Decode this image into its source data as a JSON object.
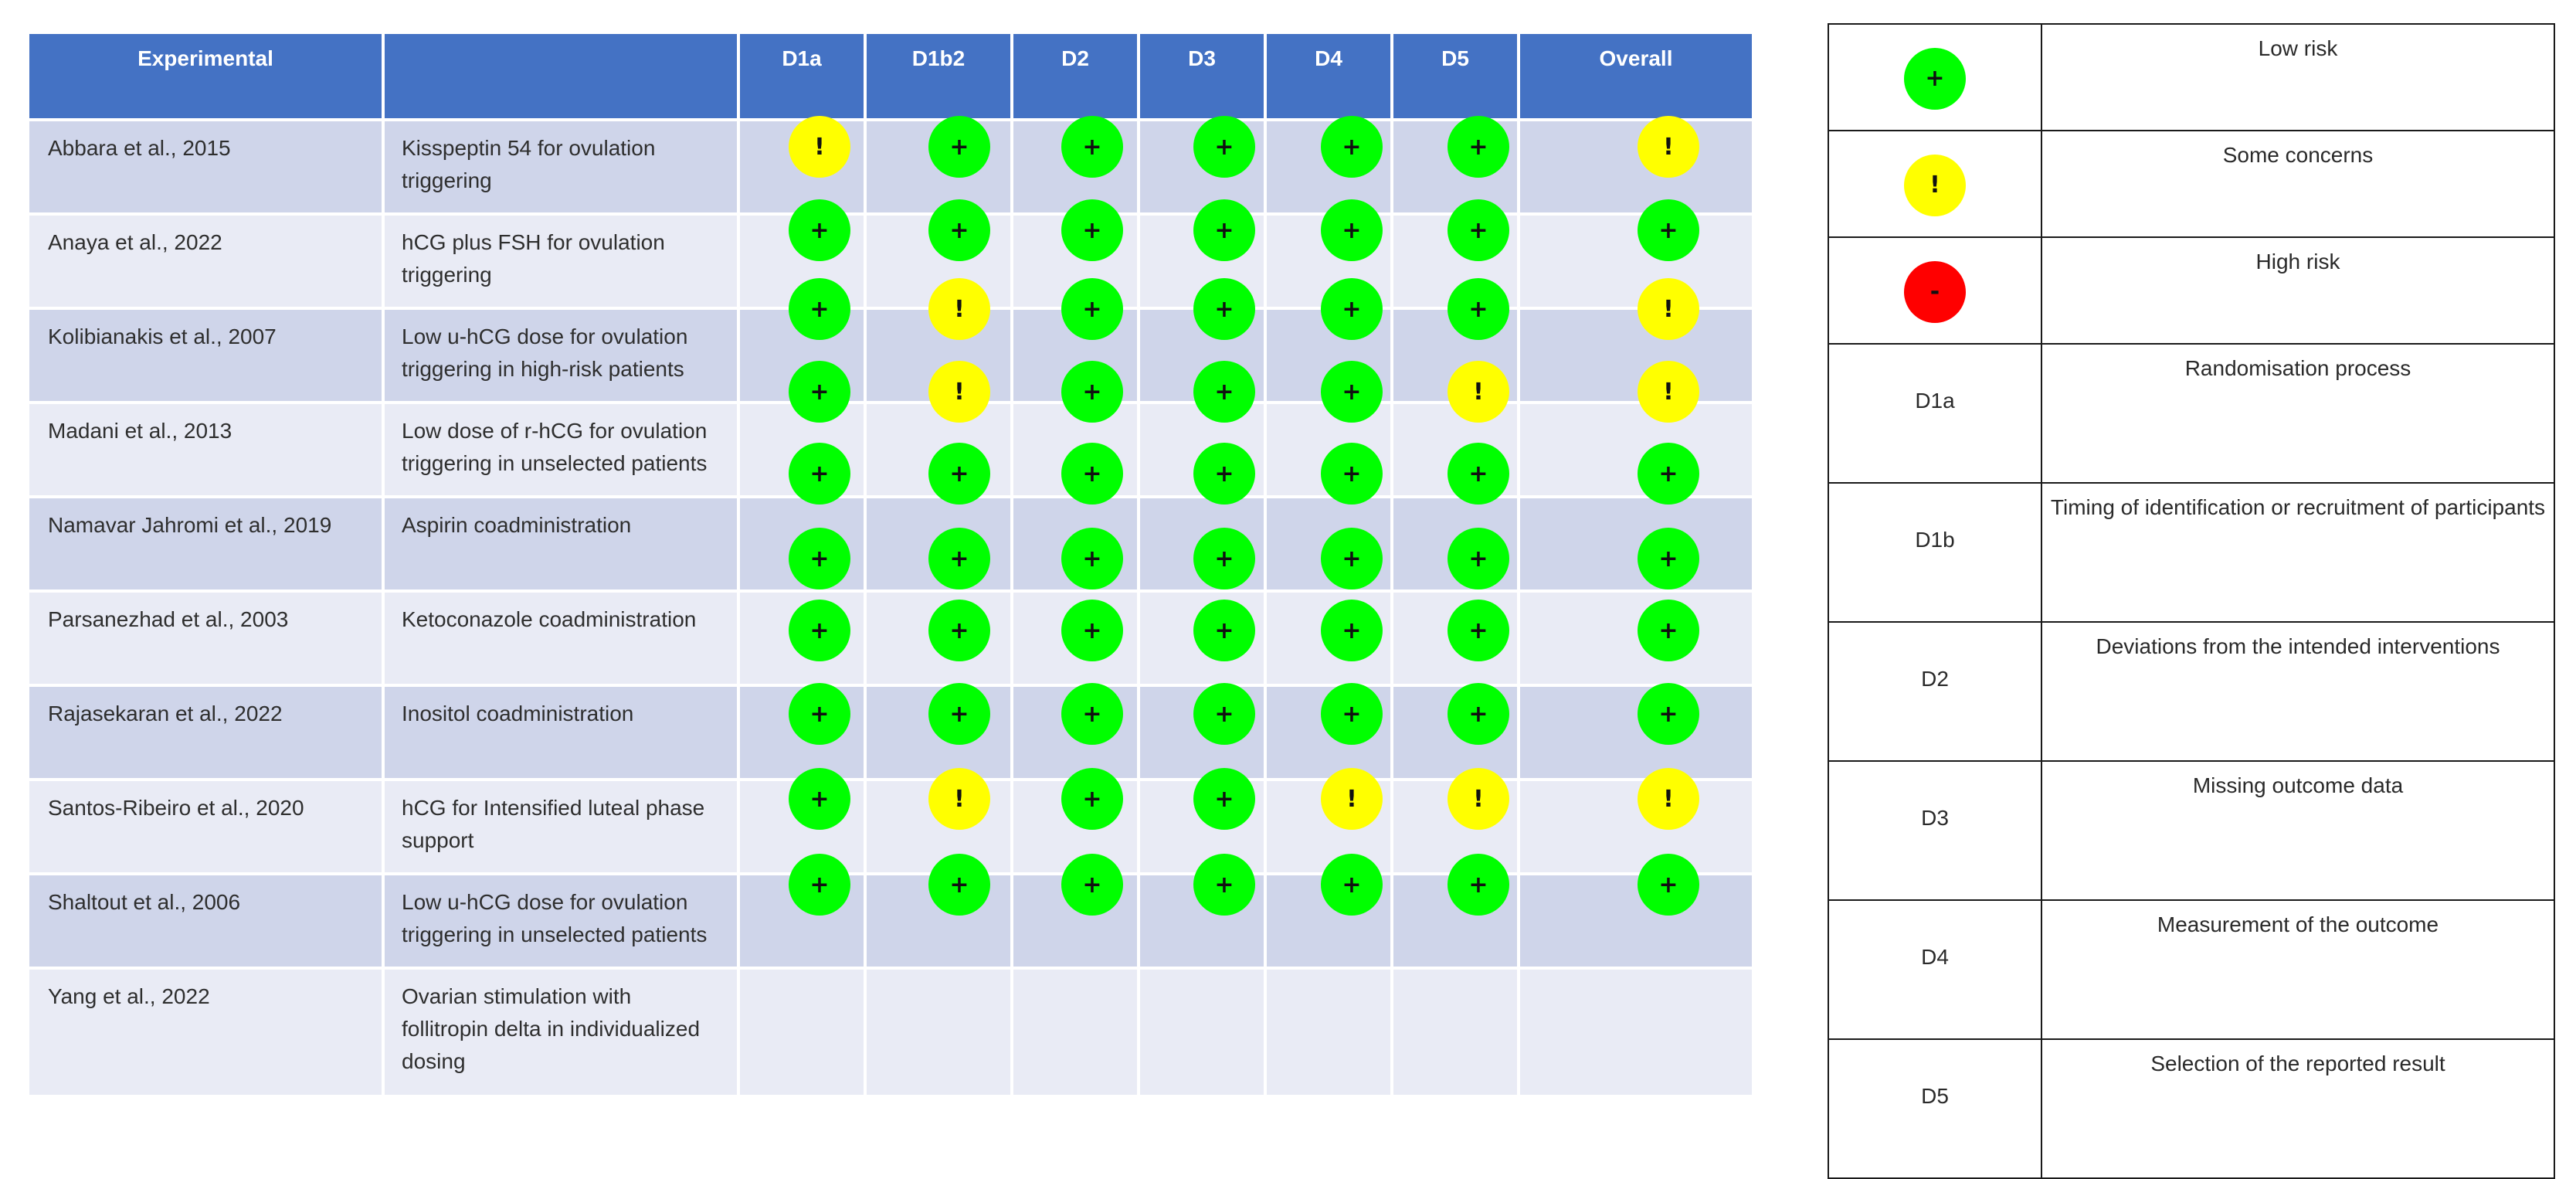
{
  "table": {
    "headers": [
      "Experimental",
      "",
      "D1a",
      "D1b2",
      "D2",
      "D3",
      "D4",
      "D5",
      "Overall"
    ],
    "rows": [
      {
        "study": "Abbara et al., 2015",
        "description": "Kisspeptin 54 for ovulation triggering"
      },
      {
        "study": "Anaya et al., 2022",
        "description": "hCG plus FSH for ovulation triggering"
      },
      {
        "study": "Kolibianakis et al., 2007",
        "description": "Low u-hCG dose for ovulation triggering in high-risk patients"
      },
      {
        "study": "Madani et al., 2013",
        "description": "Low dose of r-hCG for ovulation triggering in unselected patients"
      },
      {
        "study": "Namavar Jahromi et al., 2019",
        "description": "Aspirin coadministration"
      },
      {
        "study": "Parsanezhad et al., 2003",
        "description": "Ketoconazole coadministration"
      },
      {
        "study": "Rajasekaran et al., 2022",
        "description": "Inositol coadministration"
      },
      {
        "study": "Santos-Ribeiro et al., 2020",
        "description": "hCG for Intensified luteal phase support"
      },
      {
        "study": "Shaltout et al., 2006",
        "description": "Low u-hCG dose for ovulation triggering in unselected patients"
      },
      {
        "study": "Yang et al., 2022",
        "description": "Ovarian stimulation with follitropin delta in individualized dosing"
      }
    ]
  },
  "symbols": {
    "glyphs": {
      "low": "+",
      "some": "!",
      "high": "-"
    },
    "colors": {
      "low": "#00ff00",
      "some": "#ffff00",
      "high": "#ff0000"
    },
    "rows": [
      [
        "some",
        "low",
        "low",
        "low",
        "low",
        "low",
        "some"
      ],
      [
        "low",
        "low",
        "low",
        "low",
        "low",
        "low",
        "low"
      ],
      [
        "low",
        "some",
        "low",
        "low",
        "low",
        "low",
        "some"
      ],
      [
        "low",
        "some",
        "low",
        "low",
        "low",
        "some",
        "some"
      ],
      [
        "low",
        "low",
        "low",
        "low",
        "low",
        "low",
        "low"
      ],
      [
        "low",
        "low",
        "low",
        "low",
        "low",
        "low",
        "low"
      ],
      [
        "low",
        "low",
        "low",
        "low",
        "low",
        "low",
        "low"
      ],
      [
        "low",
        "low",
        "low",
        "low",
        "low",
        "low",
        "low"
      ],
      [
        "low",
        "some",
        "low",
        "low",
        "some",
        "some",
        "some"
      ],
      [
        "low",
        "low",
        "low",
        "low",
        "low",
        "low",
        "low"
      ]
    ]
  },
  "legend": {
    "symbols": [
      {
        "level": "low",
        "label": "Low risk"
      },
      {
        "level": "some",
        "label": "Some concerns"
      },
      {
        "level": "high",
        "label": "High risk"
      }
    ],
    "domains": [
      {
        "code": "D1a",
        "label": "Randomisation process"
      },
      {
        "code": "D1b",
        "label": "Timing of identification or recruitment of participants"
      },
      {
        "code": "D2",
        "label": "Deviations from the intended interventions"
      },
      {
        "code": "D3",
        "label": "Missing outcome data"
      },
      {
        "code": "D4",
        "label": "Measurement of the outcome"
      },
      {
        "code": "D5",
        "label": "Selection of the reported result"
      }
    ]
  }
}
